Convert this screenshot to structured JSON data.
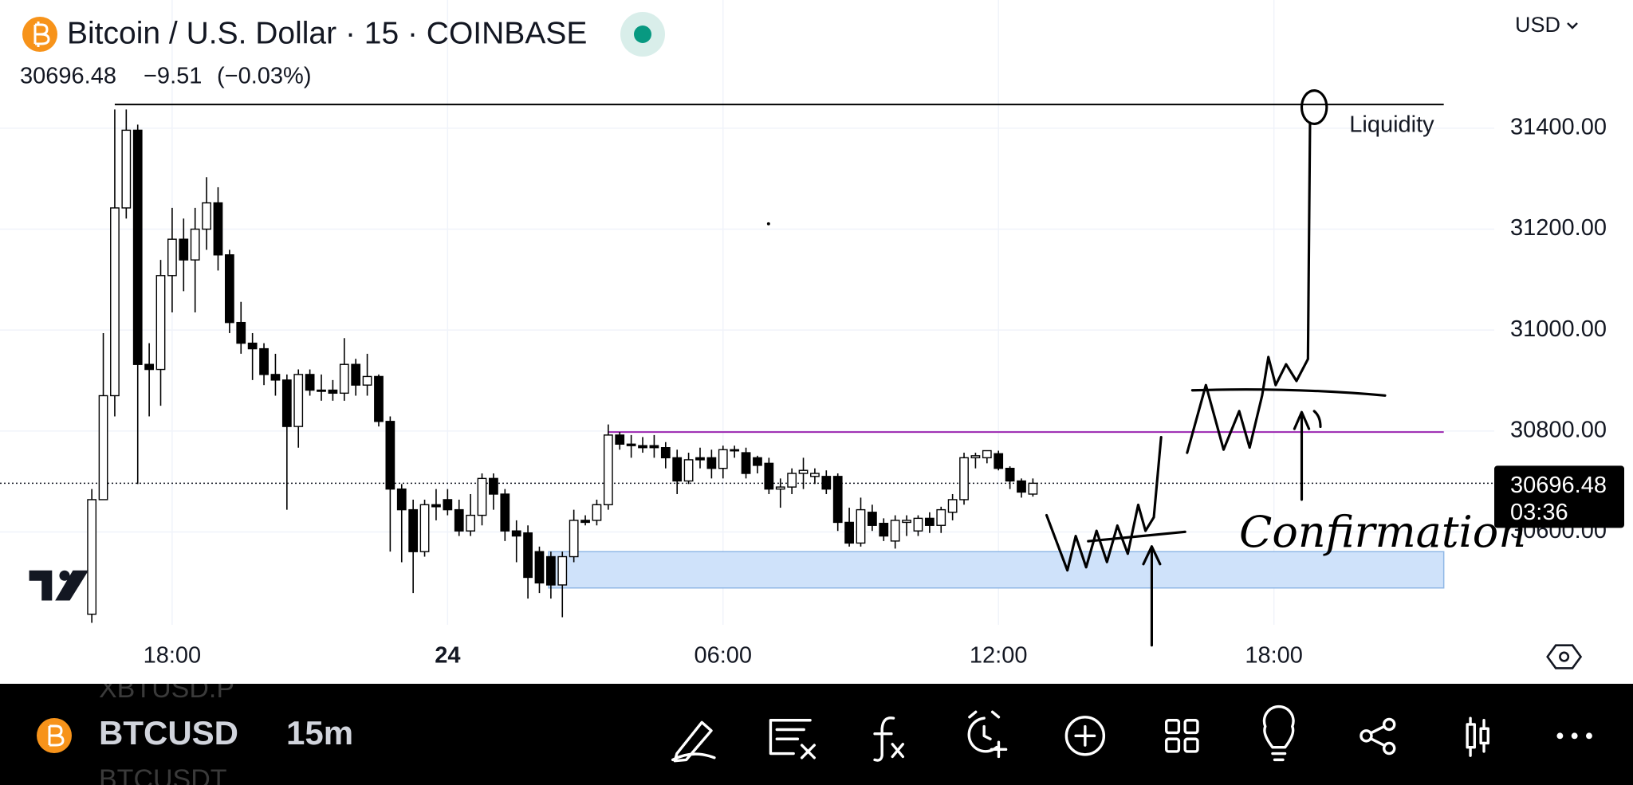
{
  "header": {
    "title": "Bitcoin / U.S. Dollar · 15 · COINBASE",
    "price": "30696.48",
    "change": "−9.51",
    "change_pct": "(−0.03%)",
    "currency": "USD"
  },
  "chart_data": {
    "type": "candlestick",
    "x": [
      -7.75,
      -7.5,
      -7.25,
      -7,
      -6.75,
      -6.5,
      -6.25,
      -6,
      -5.75,
      -5.5,
      -5.25,
      -5,
      -4.75,
      -4.5,
      -4.25,
      -4,
      -3.75,
      -3.5,
      -3.25,
      -3,
      -2.75,
      -2.5,
      -2.25,
      -2,
      -1.75,
      -1.5,
      -1.25,
      -1,
      -0.75,
      -0.5,
      -0.25,
      0,
      0.25,
      0.5,
      0.75,
      1,
      1.25,
      1.5,
      1.75,
      2,
      2.25,
      2.5,
      2.75,
      3,
      3.25,
      3.5,
      3.75,
      4,
      4.25,
      4.5,
      4.75,
      5,
      5.25,
      5.5,
      5.75,
      6,
      6.25,
      6.5,
      6.75,
      7,
      7.25,
      7.5,
      7.75,
      8,
      8.25,
      8.5,
      8.75,
      9,
      9.25,
      9.5,
      9.75,
      10,
      10.25,
      10.5,
      10.75,
      11,
      11.25,
      11.5,
      11.75,
      12,
      12.25,
      12.5,
      12.75
    ],
    "open": [
      30437,
      30664,
      30870,
      31242,
      31396,
      30932,
      30922,
      31108,
      31180,
      31139,
      31200,
      31252,
      31149,
      31015,
      30974,
      30963,
      30912,
      30901,
      30809,
      30912,
      30881,
      30881,
      30875,
      30932,
      30891,
      30908,
      30819,
      30685,
      30644,
      30561,
      30654,
      30664,
      30644,
      30602,
      30633,
      30706,
      30675,
      30602,
      30598,
      30561,
      30551,
      30495,
      30551,
      30623,
      30623,
      30654,
      30792,
      30774,
      30771,
      30771,
      30767,
      30747,
      30701,
      30747,
      30747,
      30726,
      30763,
      30757,
      30747,
      30736,
      30685,
      30689,
      30716,
      30710,
      30710,
      30710,
      30619,
      30578,
      30639,
      30617,
      30582,
      30619,
      30602,
      30627,
      30613,
      30639,
      30664,
      30747,
      30747,
      30755,
      30726,
      30701,
      30675
    ],
    "high": [
      30685,
      30994,
      31437,
      31437,
      31407,
      30974,
      31139,
      31242,
      31221,
      31242,
      31303,
      31283,
      31159,
      31056,
      30994,
      30974,
      30953,
      30912,
      30922,
      30922,
      30912,
      30901,
      30984,
      30943,
      30953,
      30912,
      30829,
      30695,
      30664,
      30664,
      30685,
      30685,
      30664,
      30675,
      30716,
      30716,
      30685,
      30623,
      30613,
      30571,
      30561,
      30561,
      30644,
      30633,
      30664,
      30813,
      30798,
      30792,
      30788,
      30792,
      30778,
      30763,
      30757,
      30767,
      30763,
      30771,
      30771,
      30767,
      30751,
      30747,
      30706,
      30726,
      30747,
      30726,
      30722,
      30716,
      30648,
      30668,
      30654,
      30627,
      30633,
      30633,
      30633,
      30639,
      30650,
      30675,
      30757,
      30757,
      30761,
      30761,
      30730,
      30706,
      30706
    ],
    "low": [
      30420,
      30664,
      30829,
      31221,
      30695,
      30829,
      30850,
      31035,
      31077,
      31035,
      31159,
      31118,
      30994,
      30953,
      30901,
      30891,
      30870,
      30644,
      30767,
      30870,
      30860,
      30860,
      30860,
      30870,
      30870,
      30809,
      30561,
      30540,
      30479,
      30551,
      30623,
      30633,
      30592,
      30592,
      30613,
      30644,
      30582,
      30540,
      30468,
      30479,
      30468,
      30431,
      30540,
      30613,
      30613,
      30644,
      30763,
      30747,
      30757,
      30747,
      30726,
      30675,
      30695,
      30726,
      30706,
      30706,
      30747,
      30706,
      30716,
      30675,
      30648,
      30675,
      30685,
      30695,
      30675,
      30602,
      30571,
      30571,
      30602,
      30582,
      30567,
      30592,
      30592,
      30598,
      30598,
      30623,
      30654,
      30726,
      30736,
      30722,
      30685,
      30668,
      30670
    ],
    "close": [
      30664,
      30870,
      31242,
      31396,
      30932,
      30922,
      31108,
      31180,
      31139,
      31200,
      31252,
      31149,
      31015,
      30974,
      30963,
      30912,
      30901,
      30809,
      30912,
      30881,
      30879,
      30875,
      30932,
      30891,
      30908,
      30819,
      30685,
      30644,
      30561,
      30654,
      30650,
      30644,
      30602,
      30633,
      30706,
      30675,
      30602,
      30592,
      30510,
      30499,
      30495,
      30551,
      30623,
      30619,
      30654,
      30792,
      30774,
      30771,
      30767,
      30767,
      30747,
      30701,
      30743,
      30743,
      30726,
      30763,
      30761,
      30716,
      30732,
      30685,
      30689,
      30716,
      30722,
      30716,
      30685,
      30619,
      30578,
      30644,
      30613,
      30592,
      30623,
      30623,
      30627,
      30613,
      30644,
      30664,
      30747,
      30751,
      30761,
      30726,
      30701,
      30679,
      30696.48
    ],
    "xlim": [
      -9.75,
      22.8
    ],
    "ylim": [
      30416,
      31654
    ],
    "xticks": [
      {
        "value": -6,
        "label": "18:00"
      },
      {
        "value": 0,
        "label": "24"
      },
      {
        "value": 6,
        "label": "06:00"
      },
      {
        "value": 12,
        "label": "12:00"
      },
      {
        "value": 18,
        "label": "18:00"
      }
    ],
    "yticks": [
      {
        "value": 30600,
        "label": "30600.00"
      },
      {
        "value": 30800,
        "label": "30800.00"
      },
      {
        "value": 31000,
        "label": "31000.00"
      },
      {
        "value": 31200,
        "label": "31200.00"
      },
      {
        "value": 31400,
        "label": "31400.00"
      }
    ],
    "grid": true,
    "up_color": "#ffffff",
    "down_color": "#000000",
    "last_price": 30696.48,
    "countdown": "03:36",
    "levels": [
      {
        "value": 31447,
        "from": -7.25,
        "to": 21.7,
        "label": "Liquidity",
        "color": "#000000"
      },
      {
        "value": 30798,
        "from": 3.5,
        "to": 21.7,
        "color": "#9c27b0"
      }
    ],
    "zone": {
      "low": 30489,
      "high": 30561,
      "from": 2.2,
      "to": 21.7,
      "color": "#cfe2fa"
    },
    "annotation": "Confirmation"
  },
  "toolbar": {
    "symbol": "BTCUSD",
    "interval": "15m",
    "hint_above": "XBTUSD.P",
    "hint_below": "BTCUSDT"
  }
}
